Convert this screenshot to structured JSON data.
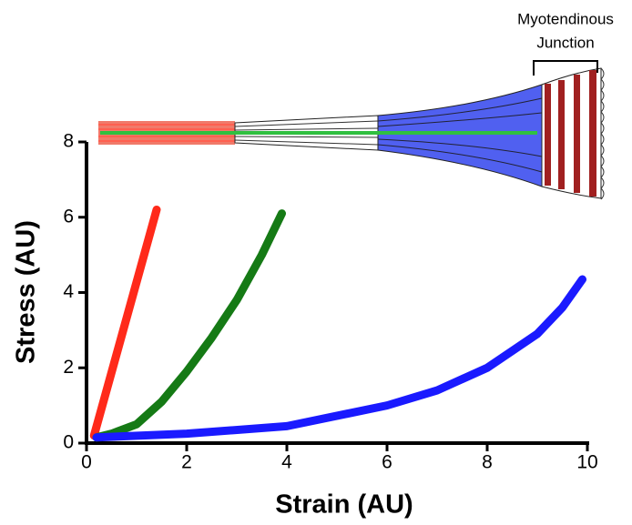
{
  "chart_data": {
    "type": "line",
    "xlabel": "Strain (AU)",
    "ylabel": "Stress (AU)",
    "annotations": [
      "Myotendinous",
      "Junction"
    ],
    "xlim": [
      0,
      10
    ],
    "ylim": [
      0,
      8
    ],
    "xticks": [
      0,
      2,
      4,
      6,
      8,
      10
    ],
    "yticks": [
      0,
      2,
      4,
      6,
      8
    ],
    "series": [
      {
        "color": "#ff2a1a",
        "x": [
          0.15,
          1.4
        ],
        "values": [
          0.2,
          6.2
        ]
      },
      {
        "color": "#157a15",
        "x": [
          0.2,
          0.5,
          1,
          1.5,
          2,
          2.5,
          3,
          3.5,
          3.9
        ],
        "values": [
          0.15,
          0.25,
          0.5,
          1.1,
          1.9,
          2.8,
          3.8,
          5.0,
          6.1
        ]
      },
      {
        "color": "#1a1aff",
        "x": [
          0.2,
          2,
          4,
          6,
          7,
          8,
          9,
          9.5,
          9.9
        ],
        "values": [
          0.15,
          0.25,
          0.45,
          1.0,
          1.4,
          2.0,
          2.9,
          3.6,
          4.35
        ]
      }
    ]
  }
}
